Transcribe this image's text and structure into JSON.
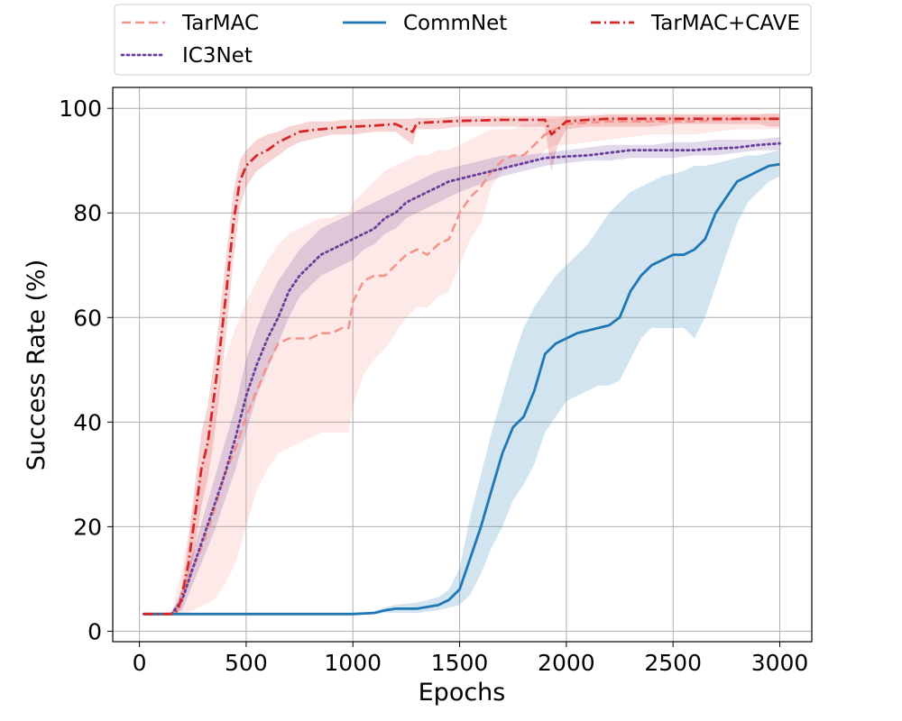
{
  "chart_data": {
    "type": "line",
    "title": "",
    "xlabel": "Epochs",
    "ylabel": "Success Rate (%)",
    "xlim": [
      -125,
      3150
    ],
    "ylim": [
      -2,
      104
    ],
    "xticks": [
      "0",
      "500",
      "1000",
      "1500",
      "2000",
      "2500",
      "3000"
    ],
    "yticks": [
      "0",
      "20",
      "40",
      "60",
      "80",
      "100"
    ],
    "grid": true,
    "legend_position": "top, above plot, 3 columns",
    "series": [
      {
        "name": "TarMAC",
        "color": "#f4948a",
        "style": "dashed",
        "x": [
          20,
          150,
          200,
          250,
          300,
          350,
          400,
          450,
          500,
          550,
          600,
          650,
          700,
          750,
          800,
          850,
          900,
          950,
          980,
          1000,
          1050,
          1100,
          1150,
          1200,
          1250,
          1300,
          1350,
          1400,
          1450,
          1500,
          1550,
          1600,
          1650,
          1700,
          1750,
          1800,
          1850,
          1900,
          1950,
          2000,
          2200,
          2400,
          2600,
          2800,
          3000
        ],
        "mean": [
          3.3,
          3.3,
          6,
          12,
          17,
          23,
          30,
          35,
          41,
          46,
          51,
          55,
          56,
          56,
          56,
          57,
          57,
          58,
          58,
          63,
          67,
          68,
          68,
          70,
          72,
          73,
          72,
          74,
          75,
          80,
          83,
          85,
          88,
          90,
          91,
          91,
          93,
          95,
          96,
          97,
          97.5,
          97.5,
          97.5,
          98,
          98
        ],
        "lower": [
          3.3,
          3.3,
          3,
          4,
          5,
          6,
          9,
          13,
          20,
          27,
          31,
          34,
          35,
          36,
          37,
          38,
          38,
          38,
          38,
          43,
          49,
          52,
          54,
          57,
          60,
          62,
          62,
          64,
          65,
          70,
          75,
          78,
          85,
          88,
          89,
          89,
          90,
          92,
          93,
          93,
          94,
          95,
          95,
          96,
          96
        ],
        "upper": [
          3.3,
          3.4,
          12,
          24,
          33,
          43,
          52,
          58,
          63,
          67,
          71,
          74,
          76,
          77,
          78,
          79,
          79,
          80,
          80,
          82,
          84,
          86,
          88,
          89,
          90,
          91,
          91,
          92,
          92,
          93,
          94,
          95,
          96,
          96,
          96,
          97,
          97,
          98,
          98,
          98.5,
          99,
          99,
          99,
          99,
          99
        ]
      },
      {
        "name": "IC3Net",
        "color": "#6a3d9a",
        "style": "dotted",
        "x": [
          20,
          150,
          200,
          250,
          300,
          350,
          400,
          450,
          500,
          550,
          600,
          650,
          700,
          750,
          800,
          850,
          900,
          950,
          1000,
          1050,
          1100,
          1150,
          1200,
          1250,
          1300,
          1350,
          1400,
          1450,
          1500,
          1600,
          1700,
          1800,
          1900,
          2000,
          2100,
          2200,
          2300,
          2400,
          2500,
          2600,
          2700,
          2800,
          2900,
          3000
        ],
        "mean": [
          3.3,
          3.3,
          6,
          12,
          18,
          24,
          30,
          37,
          45,
          51,
          56,
          60,
          65,
          68,
          70,
          72,
          73,
          74,
          75,
          76,
          77,
          79,
          80,
          82,
          83,
          84,
          85,
          86,
          86.5,
          87.5,
          88.5,
          89.5,
          90.5,
          90.8,
          91,
          91.5,
          92,
          92,
          92,
          92,
          92.3,
          92.5,
          93,
          93.3
        ],
        "lower": [
          3.3,
          3.3,
          4,
          9,
          14,
          19,
          25,
          31,
          38,
          45,
          50,
          55,
          60,
          64,
          66,
          68,
          69,
          70,
          71,
          73,
          74,
          76,
          77,
          79,
          80,
          81,
          82,
          83,
          84,
          85.5,
          87,
          88,
          89,
          89.5,
          90,
          90,
          90.5,
          90.5,
          90.5,
          91,
          91,
          91.5,
          92,
          92
        ],
        "upper": [
          3.3,
          3.5,
          8,
          15,
          22,
          29,
          36,
          43,
          52,
          58,
          63,
          67,
          70,
          73,
          75,
          77,
          78,
          79,
          80,
          81,
          82,
          83,
          84,
          85,
          86,
          87,
          88,
          88.5,
          89,
          90,
          91,
          91,
          91.5,
          92,
          92.5,
          93,
          93,
          93,
          93.5,
          93.5,
          94,
          94,
          94,
          94.5
        ]
      },
      {
        "name": "CommNet",
        "color": "#1f77b4",
        "style": "solid",
        "x": [
          20,
          200,
          400,
          600,
          800,
          1000,
          1100,
          1150,
          1200,
          1300,
          1400,
          1450,
          1500,
          1550,
          1600,
          1650,
          1700,
          1750,
          1800,
          1850,
          1900,
          1950,
          2000,
          2050,
          2100,
          2150,
          2200,
          2250,
          2300,
          2350,
          2400,
          2450,
          2500,
          2550,
          2600,
          2650,
          2700,
          2750,
          2800,
          2850,
          2900,
          2950,
          3000
        ],
        "mean": [
          3.3,
          3.3,
          3.3,
          3.3,
          3.3,
          3.3,
          3.5,
          4,
          4.3,
          4.3,
          5,
          6,
          8,
          14,
          20,
          27,
          34,
          39,
          41,
          46,
          53,
          55,
          56,
          57,
          57.5,
          58,
          58.5,
          60,
          65,
          68,
          70,
          71,
          72,
          72,
          73,
          75,
          80,
          83,
          86,
          87,
          88,
          89,
          89.3
        ],
        "lower": [
          3.3,
          3.3,
          3.3,
          3.3,
          3.3,
          3.3,
          3.3,
          3.5,
          3.5,
          3.5,
          4,
          4.5,
          5,
          7,
          11,
          16,
          20,
          25,
          28,
          32,
          38,
          41,
          44,
          45,
          46,
          47,
          47,
          48,
          52,
          56,
          58,
          58,
          58,
          58,
          56,
          60,
          66,
          72,
          78,
          82,
          84,
          86,
          87
        ],
        "upper": [
          3.3,
          3.3,
          3.3,
          3.3,
          3.3,
          3.3,
          3.8,
          4.5,
          5,
          5.5,
          6.5,
          8,
          12,
          22,
          30,
          38,
          45,
          52,
          58,
          62,
          65,
          68,
          70,
          72,
          74,
          77,
          80,
          82,
          84,
          85,
          86,
          87,
          87.5,
          88,
          89,
          89,
          89.5,
          90,
          90.5,
          91,
          91,
          91.5,
          92
        ]
      },
      {
        "name": "TarMAC+CAVE",
        "color": "#d62728",
        "style": "dashdot",
        "x": [
          20,
          150,
          180,
          200,
          230,
          260,
          290,
          320,
          350,
          380,
          410,
          440,
          470,
          500,
          550,
          600,
          650,
          700,
          750,
          800,
          850,
          900,
          950,
          1000,
          1100,
          1200,
          1280,
          1300,
          1400,
          1500,
          1600,
          1700,
          1800,
          1900,
          1930,
          1960,
          2000,
          2100,
          2200,
          2300,
          2400,
          2500,
          2600,
          2700,
          2800,
          2900,
          2950,
          3000
        ],
        "mean": [
          3.3,
          3.3,
          4,
          7,
          13,
          22,
          31,
          36,
          45,
          55,
          66,
          78,
          86,
          89,
          91,
          92,
          93.5,
          94.5,
          95.5,
          95.8,
          96,
          96.2,
          96.4,
          96.5,
          96.7,
          97,
          95.5,
          97.2,
          97.4,
          97.6,
          97.7,
          97.8,
          97.8,
          97.8,
          95,
          96,
          97.5,
          97.8,
          98,
          98,
          98,
          98,
          98,
          98,
          98,
          98,
          98,
          98
        ],
        "lower": [
          3.3,
          3.2,
          3.5,
          5,
          9,
          16,
          24,
          29,
          37,
          47,
          58,
          71,
          81,
          85,
          88,
          89.5,
          91,
          92.5,
          93.5,
          94,
          94.5,
          95,
          95,
          95,
          95.5,
          95.5,
          93,
          96,
          96,
          96.5,
          96.5,
          96.5,
          96.5,
          96.5,
          88,
          93,
          96,
          96.5,
          96.5,
          96.5,
          96.5,
          97,
          97,
          97,
          97,
          97,
          96.5,
          96.5
        ],
        "upper": [
          3.3,
          3.4,
          5,
          9,
          17,
          28,
          38,
          43,
          52,
          62,
          73,
          84,
          90,
          92,
          94,
          95,
          95.5,
          96.5,
          97,
          97.5,
          97.5,
          97.5,
          97.8,
          97.8,
          98,
          98,
          98,
          98.2,
          98.2,
          98.5,
          98.5,
          98.5,
          98.5,
          98.5,
          98.5,
          98.5,
          98.5,
          98.5,
          98.8,
          98.8,
          98.8,
          98.8,
          98.8,
          98.8,
          98.8,
          98.8,
          99,
          99
        ]
      }
    ]
  }
}
